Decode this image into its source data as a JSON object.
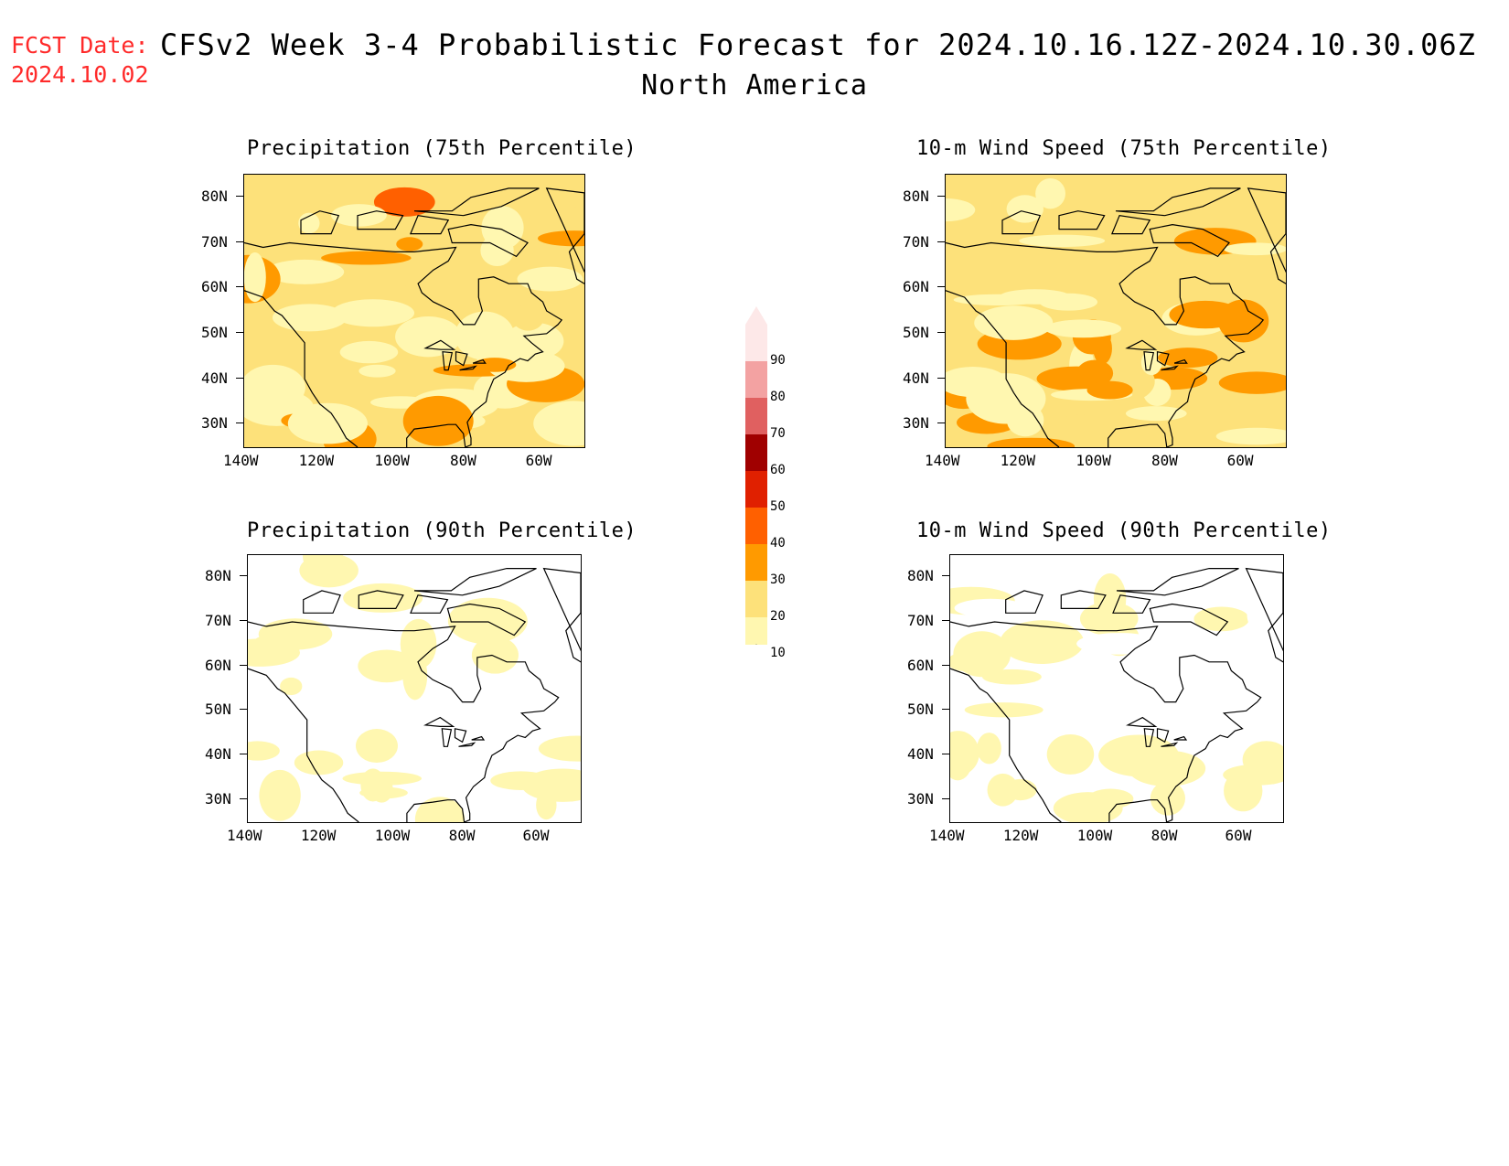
{
  "header": {
    "fcst_label": "FCST Date:",
    "fcst_date": "2024.10.02",
    "title": "CFSv2 Week 3-4 Probabilistic Forecast for 2024.10.16.12Z-2024.10.30.06Z",
    "subtitle": "North America"
  },
  "panels": [
    {
      "id": "precip75",
      "title": "Precipitation (75th Percentile)",
      "base_class": 20
    },
    {
      "id": "wind75",
      "title": "10-m Wind Speed (75th Percentile)",
      "base_class": 20
    },
    {
      "id": "precip90",
      "title": "Precipitation (90th Percentile)",
      "base_class": 0
    },
    {
      "id": "wind90",
      "title": "10-m Wind Speed (90th Percentile)",
      "base_class": 0
    }
  ],
  "axes": {
    "lat_ticks": [
      "80N",
      "70N",
      "60N",
      "50N",
      "40N",
      "30N"
    ],
    "lon_ticks": [
      "140W",
      "120W",
      "100W",
      "80W",
      "60W"
    ],
    "lat_range": [
      25,
      85
    ],
    "lon_range": [
      -140,
      -50
    ]
  },
  "colorbar": {
    "labels": [
      "90",
      "80",
      "70",
      "60",
      "50",
      "40",
      "30",
      "20",
      "10"
    ],
    "colors": [
      "#fde8e8",
      "#f3a2a2",
      "#e06060",
      "#a00000",
      "#e02000",
      "#ff6000",
      "#ff9a00",
      "#fde17a",
      "#fff7b0"
    ]
  }
}
